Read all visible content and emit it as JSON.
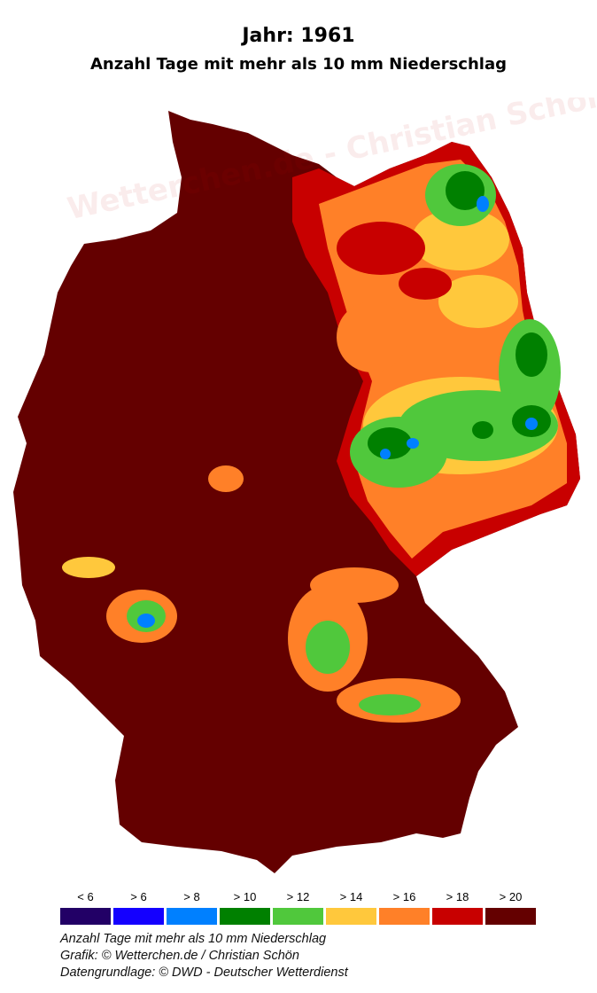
{
  "title": "Jahr: 1961",
  "subtitle": "Anzahl Tage mit mehr als 10 mm Niederschlag",
  "watermark": "Wetterchen.de - Christian Schön",
  "legend": [
    {
      "label": "< 6",
      "color": "#220066"
    },
    {
      "label": "> 6",
      "color": "#1400ff"
    },
    {
      "label": "> 8",
      "color": "#0080ff"
    },
    {
      "label": "> 10",
      "color": "#008000"
    },
    {
      "label": "> 12",
      "color": "#50c83c"
    },
    {
      "label": "> 14",
      "color": "#ffc83c"
    },
    {
      "label": "> 16",
      "color": "#ff8028"
    },
    {
      "label": "> 18",
      "color": "#c80000"
    },
    {
      "label": "> 20",
      "color": "#640000"
    }
  ],
  "footer": {
    "line1": "Anzahl Tage mit mehr als 10 mm Niederschlag",
    "line2": "Grafik: © Wetterchen.de / Christian Schön",
    "line3": "Datengrundlage: © DWD - Deutscher Wetterdienst"
  }
}
